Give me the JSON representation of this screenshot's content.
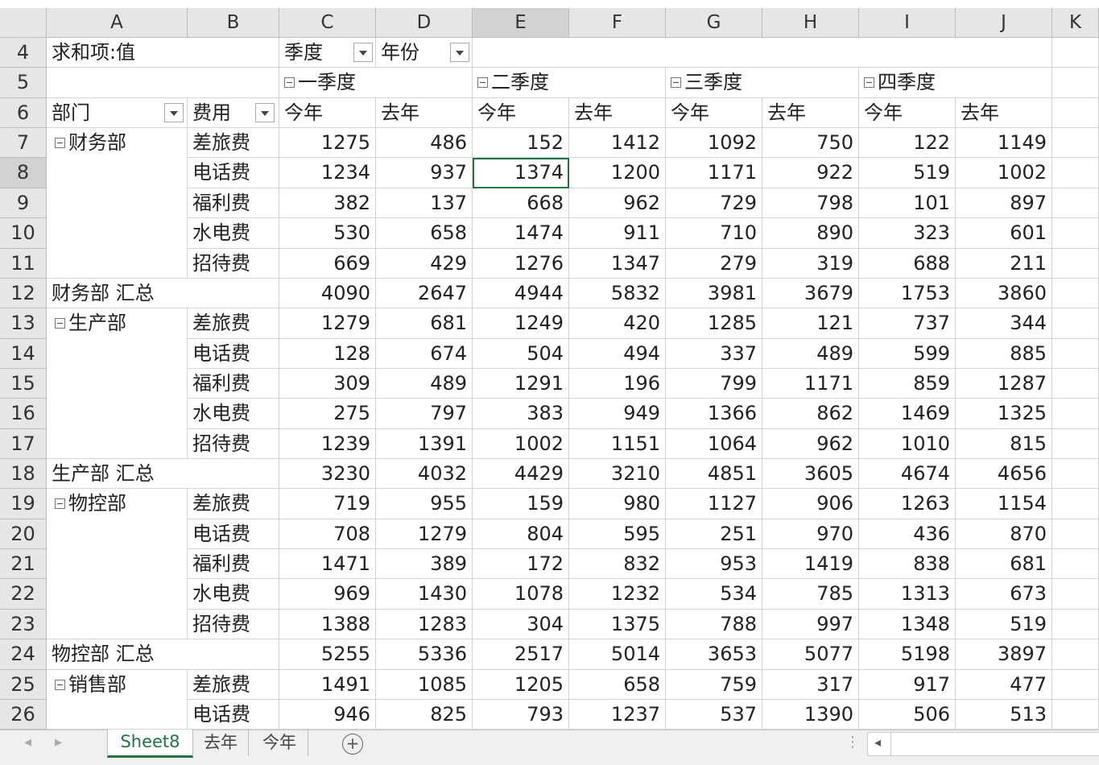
{
  "column_headers": [
    "A",
    "B",
    "C",
    "D",
    "E",
    "F",
    "G",
    "H",
    "I",
    "J",
    "K"
  ],
  "row_numbers": [
    4,
    5,
    6,
    7,
    8,
    9,
    10,
    11,
    12,
    13,
    14,
    15,
    16,
    17,
    18,
    19,
    20,
    21,
    22,
    23,
    24,
    25,
    26
  ],
  "pivot": {
    "value_label": "求和项:值",
    "col_field_1": "季度",
    "col_field_2": "年份",
    "row_field_1": "部门",
    "row_field_2": "费用",
    "quarters": [
      "一季度",
      "二季度",
      "三季度",
      "四季度"
    ],
    "years": [
      "今年",
      "去年",
      "今年",
      "去年",
      "今年",
      "去年",
      "今年",
      "去年"
    ],
    "groups": [
      {
        "name": "财务部",
        "items": [
          {
            "name": "差旅费",
            "values": [
              1275,
              486,
              152,
              1412,
              1092,
              750,
              122,
              1149
            ]
          },
          {
            "name": "电话费",
            "values": [
              1234,
              937,
              1374,
              1200,
              1171,
              922,
              519,
              1002
            ]
          },
          {
            "name": "福利费",
            "values": [
              382,
              137,
              668,
              962,
              729,
              798,
              101,
              897
            ]
          },
          {
            "name": "水电费",
            "values": [
              530,
              658,
              1474,
              911,
              710,
              890,
              323,
              601
            ]
          },
          {
            "name": "招待费",
            "values": [
              669,
              429,
              1276,
              1347,
              279,
              319,
              688,
              211
            ]
          }
        ],
        "total_label": "财务部 汇总",
        "totals": [
          4090,
          2647,
          4944,
          5832,
          3981,
          3679,
          1753,
          3860
        ]
      },
      {
        "name": "生产部",
        "items": [
          {
            "name": "差旅费",
            "values": [
              1279,
              681,
              1249,
              420,
              1285,
              121,
              737,
              344
            ]
          },
          {
            "name": "电话费",
            "values": [
              128,
              674,
              504,
              494,
              337,
              489,
              599,
              885
            ]
          },
          {
            "name": "福利费",
            "values": [
              309,
              489,
              1291,
              196,
              799,
              1171,
              859,
              1287
            ]
          },
          {
            "name": "水电费",
            "values": [
              275,
              797,
              383,
              949,
              1366,
              862,
              1469,
              1325
            ]
          },
          {
            "name": "招待费",
            "values": [
              1239,
              1391,
              1002,
              1151,
              1064,
              962,
              1010,
              815
            ]
          }
        ],
        "total_label": "生产部 汇总",
        "totals": [
          3230,
          4032,
          4429,
          3210,
          4851,
          3605,
          4674,
          4656
        ]
      },
      {
        "name": "物控部",
        "items": [
          {
            "name": "差旅费",
            "values": [
              719,
              955,
              159,
              980,
              1127,
              906,
              1263,
              1154
            ]
          },
          {
            "name": "电话费",
            "values": [
              708,
              1279,
              804,
              595,
              251,
              970,
              436,
              870
            ]
          },
          {
            "name": "福利费",
            "values": [
              1471,
              389,
              172,
              832,
              953,
              1419,
              838,
              681
            ]
          },
          {
            "name": "水电费",
            "values": [
              969,
              1430,
              1078,
              1232,
              534,
              785,
              1313,
              673
            ]
          },
          {
            "name": "招待费",
            "values": [
              1388,
              1283,
              304,
              1375,
              788,
              997,
              1348,
              519
            ]
          }
        ],
        "total_label": "物控部 汇总",
        "totals": [
          5255,
          5336,
          2517,
          5014,
          3653,
          5077,
          5198,
          3897
        ]
      },
      {
        "name": "销售部",
        "items": [
          {
            "name": "差旅费",
            "values": [
              1491,
              1085,
              1205,
              658,
              759,
              317,
              917,
              477
            ]
          },
          {
            "name": "电话费",
            "values": [
              946,
              825,
              793,
              1237,
              537,
              1390,
              506,
              513
            ]
          }
        ]
      }
    ]
  },
  "sheet_tabs": [
    "Sheet8",
    "去年",
    "今年"
  ]
}
